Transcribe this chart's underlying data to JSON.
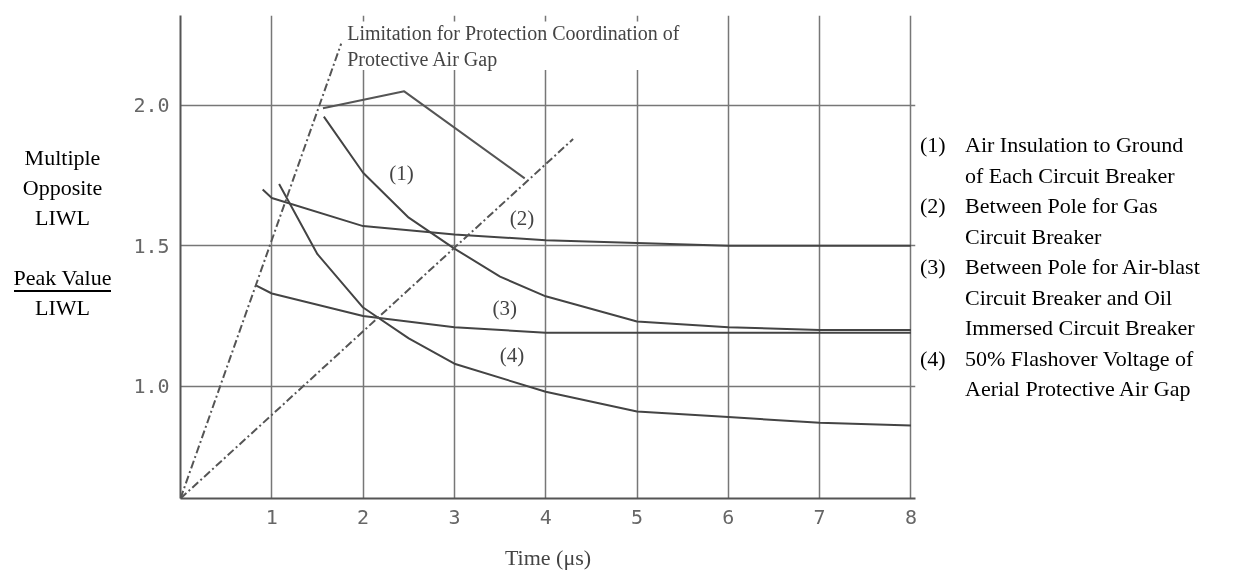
{
  "chart_data": {
    "type": "line",
    "xlabel": "Time (μs)",
    "ylabel": "Multiple\nOpposite\nLIWL\n\nPeak Value\nLIWL",
    "xlim": [
      0,
      8.05
    ],
    "ylim": [
      0.6,
      2.32
    ],
    "xticks": [
      1,
      2,
      3,
      4,
      5,
      6,
      7,
      8
    ],
    "yticks": [
      {
        "value": 1.0,
        "label": "1.0"
      },
      {
        "value": 1.5,
        "label": "1.5"
      },
      {
        "value": 2.0,
        "label": "2.0"
      }
    ],
    "grid": true,
    "marker": "none",
    "series": [
      {
        "color": "#444444",
        "x": [
          1.57,
          2.0,
          2.5,
          3.0,
          3.5,
          4.0,
          5.0,
          6.0,
          7.0,
          8.0
        ],
        "values": [
          1.96,
          1.76,
          1.6,
          1.49,
          1.39,
          1.32,
          1.23,
          1.21,
          1.2,
          1.2
        ]
      },
      {
        "color": "#444444",
        "x": [
          0.9,
          1.0,
          2.0,
          3.0,
          4.0,
          5.0,
          6.0,
          7.0,
          8.0
        ],
        "values": [
          1.7,
          1.67,
          1.57,
          1.54,
          1.52,
          1.51,
          1.5,
          1.5,
          1.5
        ]
      },
      {
        "color": "#444444",
        "x": [
          0.82,
          1.0,
          2.0,
          3.0,
          4.0,
          5.0,
          6.0,
          7.0,
          8.0
        ],
        "values": [
          1.36,
          1.33,
          1.25,
          1.21,
          1.19,
          1.19,
          1.19,
          1.19,
          1.19
        ]
      },
      {
        "color": "#444444",
        "x": [
          1.08,
          1.5,
          2.0,
          2.5,
          3.0,
          4.0,
          5.0,
          6.0,
          7.0,
          8.0
        ],
        "values": [
          1.72,
          1.47,
          1.28,
          1.17,
          1.08,
          0.98,
          0.91,
          0.89,
          0.87,
          0.86
        ]
      },
      {
        "color": "#555555",
        "line_style": "dashed",
        "x": [
          0,
          1.76
        ],
        "values": [
          0.6,
          2.22
        ]
      },
      {
        "color": "#555555",
        "line_style": "dashed",
        "x": [
          0,
          4.3
        ],
        "values": [
          0.6,
          1.88
        ]
      },
      {
        "color": "#555555",
        "x": [
          1.56,
          2.45,
          3.77
        ],
        "values": [
          1.99,
          2.05,
          1.74
        ]
      }
    ],
    "annotations": [
      {
        "text": "Limitation for Protection Coordination of\nProtective Air Gap",
        "x": 1.76,
        "y": 2.22
      },
      {
        "text": "(1)",
        "x": 2.42,
        "y": 1.76
      },
      {
        "text": "(2)",
        "x": 3.74,
        "y": 1.6
      },
      {
        "text": "(3)",
        "x": 3.55,
        "y": 1.28
      },
      {
        "text": "(4)",
        "x": 3.63,
        "y": 1.11
      },
      "(1) Air Insulation to Ground of Each Circuit Breaker",
      "(2) Between Pole for Gas Circuit Breaker",
      "(3) Between Pole for Air-blast Circuit Breaker and Oil Immersed Circuit Breaker",
      "(4) 50% Flashover Voltage of Aerial Protective Air Gap"
    ]
  }
}
